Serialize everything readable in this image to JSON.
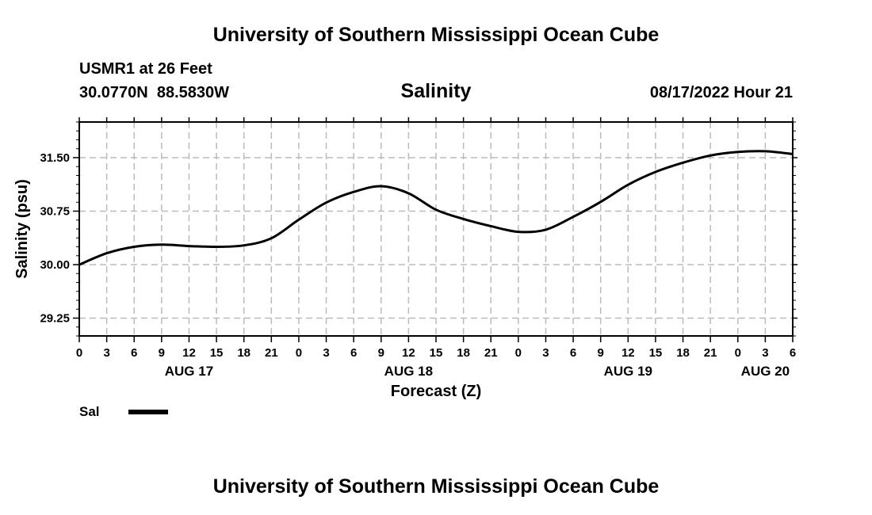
{
  "header": {
    "title": "University of Southern Mississippi Ocean Cube",
    "station": "USMR1 at 26 Feet",
    "coords": "30.0770N  88.5830W",
    "variable": "Salinity",
    "datetime": "08/17/2022 Hour 21",
    "footer_title": "University of Southern Mississippi Ocean Cube"
  },
  "legend": {
    "label": "Sal"
  },
  "chart_data": {
    "type": "line",
    "title": "Salinity",
    "xlabel": "Forecast (Z)",
    "ylabel": "Salinity (psu)",
    "xlim": [
      0,
      78
    ],
    "ylim": [
      29.0,
      32.0
    ],
    "yticks": [
      29.25,
      30.0,
      30.75,
      31.5
    ],
    "ytick_labels": [
      "29.25",
      "30.00",
      "30.75",
      "31.50"
    ],
    "xtick_step_hours": 3,
    "xtick_labels": [
      "0",
      "3",
      "6",
      "9",
      "12",
      "15",
      "18",
      "21",
      "0",
      "3",
      "6",
      "9",
      "12",
      "15",
      "18",
      "21",
      "0",
      "3",
      "6",
      "9",
      "12",
      "15",
      "18",
      "21",
      "0",
      "3",
      "6"
    ],
    "date_labels": [
      {
        "text": "AUG 17",
        "hour": 12
      },
      {
        "text": "AUG 18",
        "hour": 36
      },
      {
        "text": "AUG 19",
        "hour": 60
      },
      {
        "text": "AUG 20",
        "hour": 75
      }
    ],
    "grid": true,
    "series": [
      {
        "name": "Sal",
        "color": "#000000",
        "x": [
          0,
          3,
          6,
          9,
          12,
          15,
          18,
          21,
          24,
          27,
          30,
          33,
          36,
          39,
          42,
          45,
          48,
          51,
          54,
          57,
          60,
          63,
          66,
          69,
          72,
          75,
          78
        ],
        "y": [
          30.0,
          30.16,
          30.25,
          30.28,
          30.26,
          30.25,
          30.27,
          30.37,
          30.63,
          30.87,
          31.02,
          31.1,
          31.0,
          30.77,
          30.64,
          30.54,
          30.46,
          30.49,
          30.67,
          30.88,
          31.12,
          31.3,
          31.43,
          31.53,
          31.58,
          31.59,
          31.55
        ]
      }
    ]
  }
}
